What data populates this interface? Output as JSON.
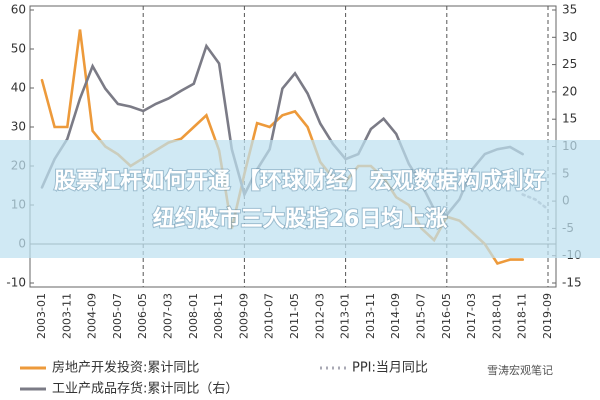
{
  "chart_data": {
    "type": "line",
    "x": [
      "2003-01",
      null,
      "2003-11",
      null,
      "2004-09",
      null,
      "2005-07",
      null,
      "2006-05",
      null,
      "2007-03",
      null,
      "2008-01",
      null,
      "2008-11",
      null,
      "2009-09",
      null,
      "2010-07",
      null,
      "2011-05",
      null,
      "2012-03",
      null,
      "2013-01",
      null,
      "2013-11",
      null,
      "2014-09",
      null,
      "2015-07",
      null,
      "2016-05",
      null,
      "2017-03",
      null,
      "2018-01",
      null,
      "2018-11",
      null,
      "2019-09"
    ],
    "series": [
      {
        "name": "房地产开发投资:累计同比",
        "color": "#ed9a3b",
        "axis": "y",
        "style": "solid",
        "values": [
          42,
          30,
          30,
          55,
          29,
          25,
          23,
          20,
          22,
          24,
          26,
          27,
          30,
          33,
          24,
          4,
          18,
          31,
          30,
          33,
          34,
          30,
          21,
          17,
          16,
          20,
          20,
          17,
          12,
          10,
          4,
          1,
          7,
          6,
          3,
          0,
          -5,
          -4,
          -4,
          null,
          null
        ]
      },
      {
        "name": "PPI:当月同比",
        "color": "#a9a9b4",
        "axis": "y2",
        "style": "dotted",
        "values": [
          null,
          null,
          null,
          null,
          null,
          null,
          null,
          null,
          null,
          null,
          null,
          null,
          null,
          null,
          null,
          null,
          null,
          null,
          null,
          null,
          null,
          null,
          null,
          null,
          null,
          null,
          null,
          null,
          null,
          null,
          null,
          null,
          null,
          null,
          null,
          null,
          null,
          null,
          1.2,
          0.3,
          -1.5
        ]
      },
      {
        "name": "工业产成品存货:累计同比（右）",
        "color": "#7b7b86",
        "axis": "y2",
        "style": "solid",
        "values": [
          2.5,
          7.7,
          11.4,
          18.8,
          24.7,
          20.6,
          17.8,
          17.3,
          16.5,
          17.8,
          18.8,
          20.2,
          21.5,
          28.4,
          25.2,
          9.5,
          1.2,
          5.8,
          9.5,
          20.6,
          23.4,
          19.7,
          14.2,
          10.5,
          7.7,
          8.6,
          13.2,
          15.1,
          12.3,
          6.8,
          3.1,
          -1.5,
          -2.5,
          0.3,
          5.8,
          8.6,
          9.5,
          9.9,
          8.6,
          null,
          null
        ]
      }
    ],
    "ylim": [
      -10,
      60
    ],
    "yticks": [
      -10,
      0,
      10,
      20,
      30,
      40,
      50,
      60
    ],
    "y2lim": [
      -15,
      35
    ],
    "y2ticks": [
      -15,
      -10,
      -5,
      0,
      5,
      10,
      15,
      20,
      25,
      30,
      35
    ],
    "reference_lines": [
      "2006-05",
      "2009-09",
      "2013-01",
      "2016-05",
      "2019-09"
    ],
    "overlay": {
      "line1": "股票杠杆如何开通 【环球财经】宏观数据构成利好",
      "line2": "纽约股市三大股指26日均上涨"
    },
    "watermark": "雪涛宏观笔记"
  }
}
